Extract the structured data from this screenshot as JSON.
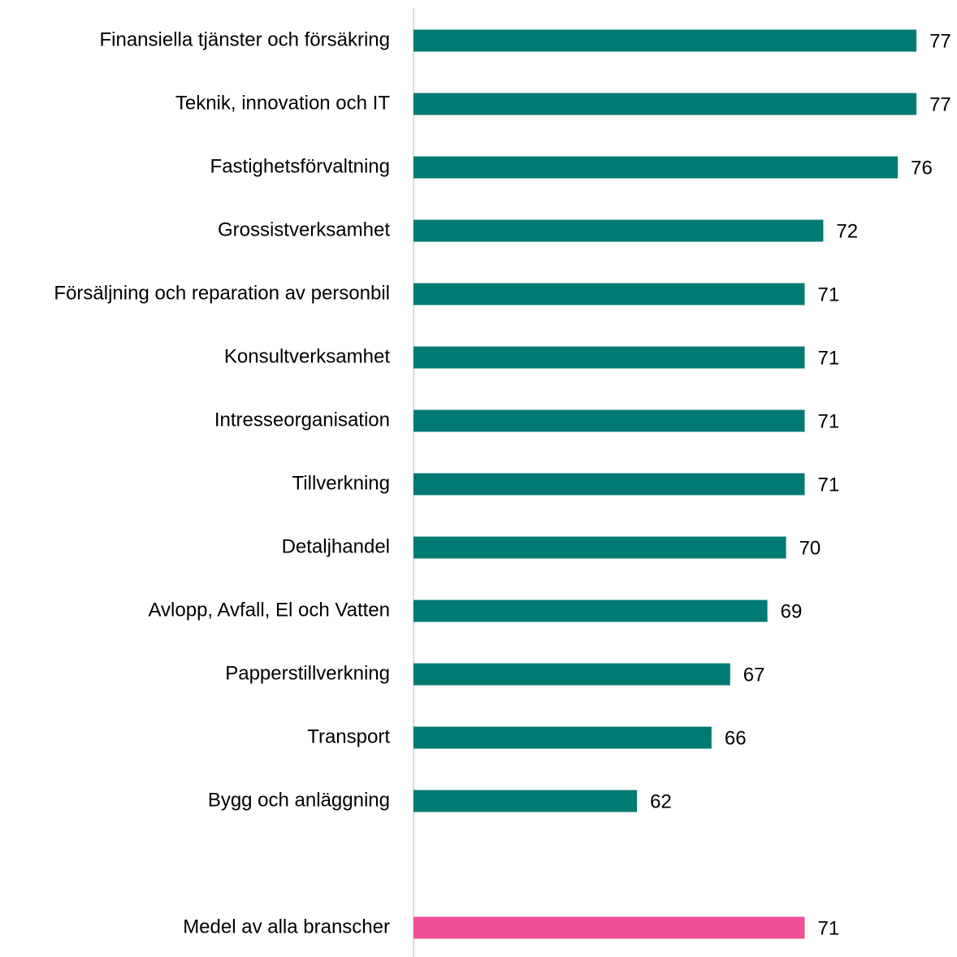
{
  "chart_data": {
    "type": "bar",
    "orientation": "horizontal",
    "categories": [
      "Finansiella tjänster och försäkring",
      "Teknik, innovation och IT",
      "Fastighetsförvaltning",
      "Grossistverksamhet",
      "Försäljning och reparation av personbil",
      "Konsultverksamhet",
      "Intresseorganisation",
      "Tillverkning",
      "Detaljhandel",
      "Avlopp, Avfall, El och Vatten",
      "Papperstillverkning",
      "Transport",
      "Bygg och anläggning"
    ],
    "values": [
      77,
      77,
      76,
      72,
      71,
      71,
      71,
      71,
      70,
      69,
      67,
      66,
      62
    ],
    "color": "#007a72",
    "average": {
      "label": "Medel av alla branscher",
      "value": 71,
      "color": "#f0509a"
    },
    "xlim": [
      50,
      78
    ]
  }
}
